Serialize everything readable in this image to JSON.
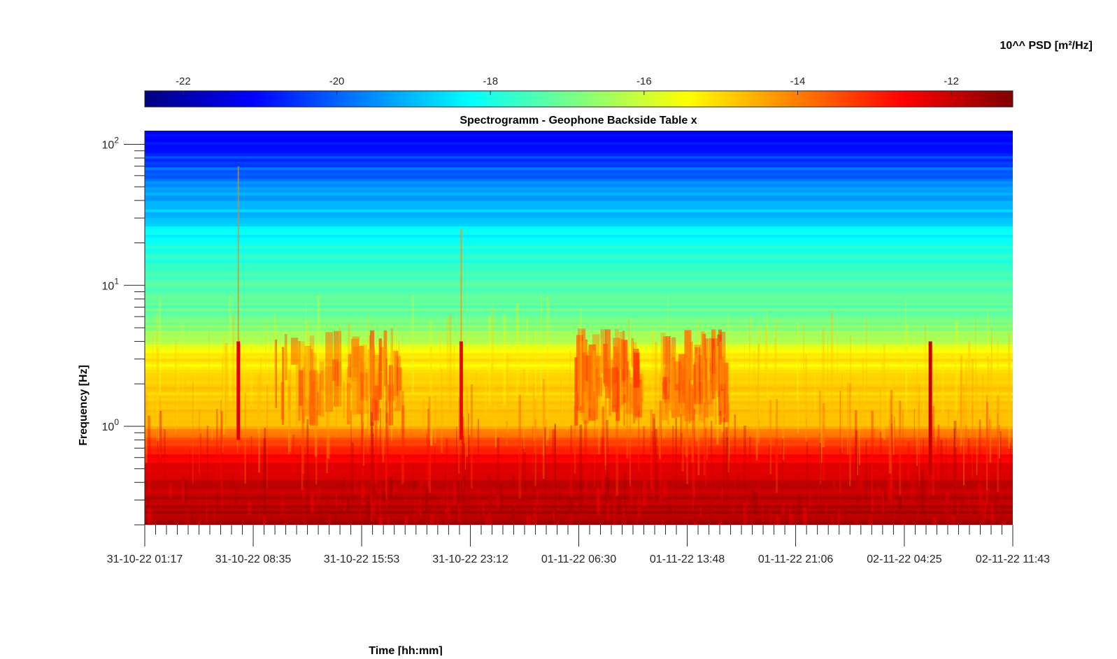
{
  "chart_data": {
    "type": "heatmap",
    "title": "Spectrogramm - Geophone Backside Table x",
    "xlabel": "Time [hh:mm]",
    "ylabel": "Frequency [Hz]",
    "colorbar": {
      "label": "10^^ PSD [m²/Hz]",
      "range": [
        -22.5,
        -11.2
      ],
      "ticks": [
        -22,
        -20,
        -18,
        -16,
        -14,
        -12
      ],
      "tick_labels": [
        "-22",
        "-20",
        "-18",
        "-16",
        "-14",
        "-12"
      ],
      "colormap": "jet"
    },
    "x": {
      "start": "2022-10-31T01:17",
      "end": "2022-11-02T11:43",
      "ticks": [
        "2022-10-31T01:17",
        "2022-10-31T08:35",
        "2022-10-31T15:53",
        "2022-10-31T23:12",
        "2022-11-01T06:30",
        "2022-11-01T13:48",
        "2022-11-01T21:06",
        "2022-11-02T04:25",
        "2022-11-02T11:43"
      ],
      "tick_labels": [
        "31-10-22 01:17",
        "31-10-22 08:35",
        "31-10-22 15:53",
        "31-10-22 23:12",
        "01-11-22 06:30",
        "01-11-22 13:48",
        "01-11-22 21:06",
        "02-11-22 04:25",
        "02-11-22 11:43"
      ]
    },
    "y": {
      "scale": "log",
      "range": [
        0.2,
        125
      ],
      "ticks": [
        1,
        10,
        100
      ],
      "tick_labels": [
        {
          "base": "10",
          "exp": "0"
        },
        {
          "base": "10",
          "exp": "1"
        },
        {
          "base": "10",
          "exp": "2"
        }
      ]
    },
    "psd_profile_log10": [
      {
        "freq": 0.2,
        "psd": -11.7
      },
      {
        "freq": 0.5,
        "psd": -12.1
      },
      {
        "freq": 0.7,
        "psd": -13.0
      },
      {
        "freq": 1.0,
        "psd": -14.6
      },
      {
        "freq": 3.0,
        "psd": -15.2
      },
      {
        "freq": 5.0,
        "psd": -16.8
      },
      {
        "freq": 7.0,
        "psd": -17.2
      },
      {
        "freq": 10.0,
        "psd": -17.4
      },
      {
        "freq": 20.0,
        "psd": -18.1
      },
      {
        "freq": 50.0,
        "psd": -19.5
      },
      {
        "freq": 70.0,
        "psd": -20.3
      },
      {
        "freq": 100.0,
        "psd": -21.1
      },
      {
        "freq": 125.0,
        "psd": -21.4
      }
    ],
    "events": [
      {
        "time": "2022-10-31T07:35",
        "fmin": 0.8,
        "fmax": 70,
        "psd": -12.3
      },
      {
        "time": "2022-10-31T22:35",
        "fmin": 0.8,
        "fmax": 25,
        "psd": -12.5
      },
      {
        "time": "2022-11-02T06:10",
        "fmin": 0.45,
        "fmax": 4,
        "psd": -12.0
      }
    ],
    "active_periods": [
      {
        "start": "2022-10-31T09:55",
        "end": "2022-10-31T18:20",
        "fmin": 1.0,
        "fmax": 5
      },
      {
        "start": "2022-11-01T06:10",
        "end": "2022-11-01T10:40",
        "fmin": 1.0,
        "fmax": 5
      },
      {
        "start": "2022-11-01T12:00",
        "end": "2022-11-01T16:10",
        "fmin": 1.0,
        "fmax": 5
      }
    ]
  }
}
